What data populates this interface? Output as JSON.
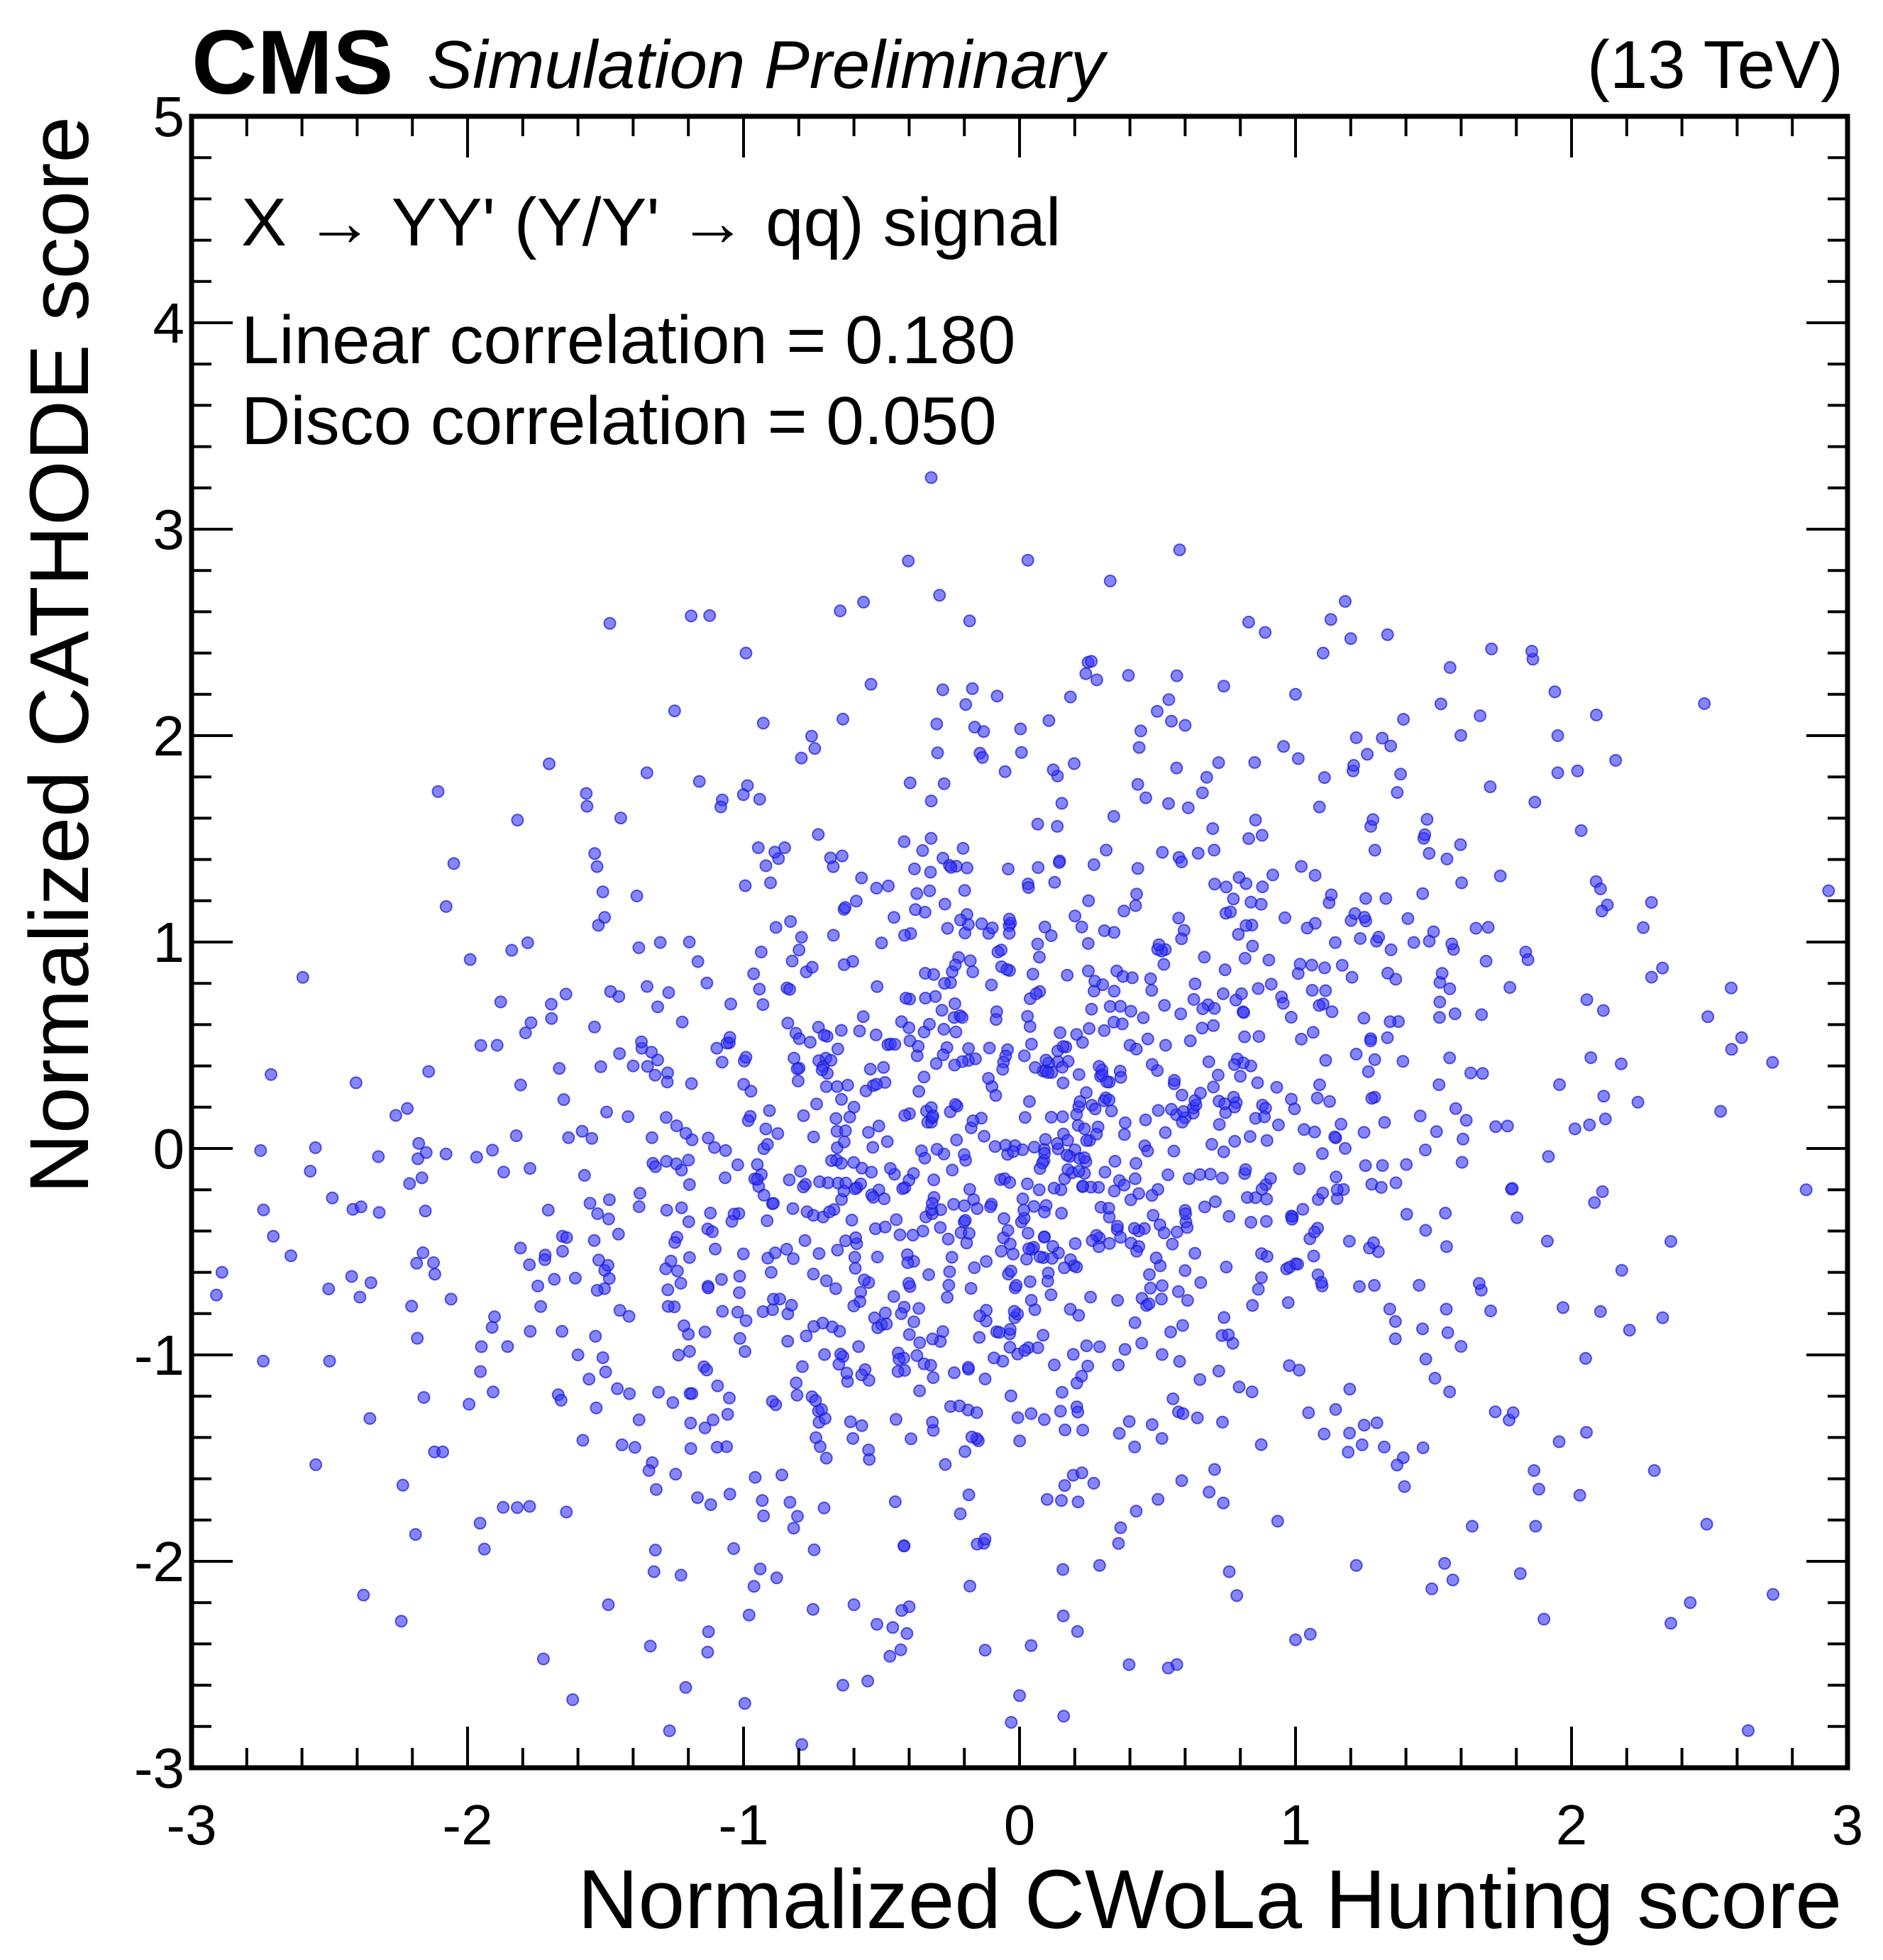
{
  "colors": {
    "points": "#3333ff",
    "points_stroke": "#1a1acc",
    "axes": "#000000",
    "background": "#ffffff"
  },
  "header": {
    "experiment": "CMS",
    "status": "Simulation Preliminary",
    "energy": "(13 TeV)"
  },
  "annotations": {
    "process": "X → YY' (Y/Y' → qq) signal",
    "linear_corr": "Linear correlation = 0.180",
    "disco_corr": "Disco correlation = 0.050"
  },
  "chart_data": {
    "type": "scatter",
    "title": "",
    "xlabel": "Normalized CWoLa Hunting score",
    "ylabel": "Normalized CATHODE score",
    "xlim": [
      -3,
      3
    ],
    "ylim": [
      -3,
      5
    ],
    "xticks": [
      -3,
      -2,
      -1,
      0,
      1,
      2,
      3
    ],
    "yticks": [
      -3,
      -2,
      -1,
      0,
      1,
      2,
      3,
      4,
      5
    ],
    "xtick_labels": [
      "-3",
      "-2",
      "-1",
      "0",
      "1",
      "2",
      "3"
    ],
    "ytick_labels": [
      "-3",
      "-2",
      "-1",
      "0",
      "1",
      "2",
      "3",
      "4",
      "5"
    ],
    "grid": false,
    "legend": "none",
    "series": [
      {
        "name": "X → YY' (Y/Y' → qq) signal",
        "n_points_approx": 1500,
        "linear_correlation": 0.18,
        "disco_correlation": 0.05,
        "explicit_points": [
          [
            -0.32,
            3.25
          ],
          [
            0.03,
            2.85
          ],
          [
            0.58,
            2.9
          ],
          [
            -0.29,
            2.68
          ],
          [
            -1.19,
            2.58
          ],
          [
            1.18,
            2.65
          ],
          [
            1.2,
            2.47
          ],
          [
            0.83,
            2.55
          ],
          [
            0.89,
            2.5
          ],
          [
            1.1,
            2.4
          ],
          [
            1.71,
            2.42
          ],
          [
            1.86,
            2.37
          ],
          [
            1.56,
            2.33
          ],
          [
            0.57,
            2.29
          ],
          [
            0.74,
            2.24
          ],
          [
            0.24,
            2.3
          ],
          [
            0.28,
            2.27
          ],
          [
            -1.35,
            1.82
          ],
          [
            -1.57,
            1.72
          ],
          [
            -2.05,
            1.38
          ],
          [
            -1.25,
            2.12
          ],
          [
            -0.64,
            2.08
          ],
          [
            -0.13,
            2.02
          ],
          [
            0.55,
            2.07
          ],
          [
            0.6,
            2.05
          ],
          [
            1.0,
            2.2
          ],
          [
            1.22,
            1.99
          ],
          [
            1.26,
            1.91
          ],
          [
            1.95,
            2.0
          ],
          [
            2.09,
            2.1
          ],
          [
            1.95,
            1.82
          ],
          [
            2.16,
            1.88
          ],
          [
            2.58,
            0.48
          ],
          [
            2.85,
            -0.2
          ],
          [
            2.54,
            0.18
          ],
          [
            2.73,
            -2.16
          ],
          [
            2.64,
            -2.82
          ],
          [
            2.36,
            -2.3
          ],
          [
            2.49,
            -1.82
          ],
          [
            2.43,
            -2.2
          ],
          [
            2.3,
            -1.56
          ],
          [
            2.21,
            -0.88
          ],
          [
            2.33,
            -0.82
          ],
          [
            2.36,
            -0.45
          ],
          [
            2.18,
            0.41
          ],
          [
            2.26,
            1.07
          ],
          [
            2.29,
            0.83
          ],
          [
            2.13,
            1.18
          ],
          [
            2.11,
            1.15
          ],
          [
            2.07,
            0.44
          ],
          [
            -2.89,
            -0.6
          ],
          [
            -2.91,
            -0.71
          ],
          [
            -2.75,
            -0.01
          ],
          [
            -2.74,
            -1.03
          ],
          [
            -2.64,
            -0.52
          ],
          [
            -2.57,
            -0.11
          ],
          [
            -2.5,
            -1.03
          ],
          [
            -2.49,
            -0.24
          ],
          [
            -2.42,
            -0.62
          ],
          [
            -2.39,
            -0.72
          ],
          [
            -2.35,
            -0.65
          ],
          [
            -2.32,
            -0.31
          ],
          [
            -2.26,
            0.16
          ],
          [
            -2.24,
            -2.29
          ],
          [
            -2.21,
            -0.17
          ],
          [
            -2.18,
            -0.05
          ],
          [
            -2.15,
            -0.02
          ],
          [
            -2.12,
            -1.47
          ],
          [
            -2.09,
            -1.47
          ],
          [
            -2.06,
            -0.73
          ],
          [
            -1.95,
            -0.96
          ],
          [
            -1.88,
            0.71
          ],
          [
            -1.84,
            0.96
          ],
          [
            -1.82,
            -1.74
          ],
          [
            -1.79,
            0.56
          ],
          [
            -1.13,
            -2.44
          ],
          [
            -0.98,
            -2.26
          ],
          [
            -0.88,
            -2.08
          ],
          [
            -0.64,
            -2.6
          ],
          [
            -0.55,
            -2.58
          ],
          [
            -0.47,
            -2.46
          ],
          [
            -0.03,
            -2.78
          ],
          [
            0.0,
            -2.65
          ],
          [
            0.16,
            -2.75
          ],
          [
            0.21,
            -2.34
          ],
          [
            0.57,
            -2.5
          ],
          [
            0.76,
            -2.05
          ],
          [
            1.0,
            -2.38
          ],
          [
            1.22,
            -2.02
          ],
          [
            1.54,
            -2.01
          ],
          [
            1.57,
            -2.09
          ],
          [
            1.64,
            -1.83
          ],
          [
            1.87,
            -1.83
          ],
          [
            1.9,
            -2.28
          ],
          [
            2.03,
            -1.68
          ],
          [
            -1.49,
            -2.21
          ],
          [
            -0.6,
            -2.21
          ],
          [
            -0.4,
            -2.22
          ],
          [
            -0.18,
            -2.12
          ],
          [
            0.29,
            -2.02
          ],
          [
            0.02,
            0.15
          ],
          [
            -0.1,
            0.3
          ],
          [
            0.15,
            -0.2
          ],
          [
            0.4,
            0.5
          ],
          [
            -0.35,
            -0.4
          ],
          [
            0.6,
            -0.3
          ],
          [
            -0.6,
            0.2
          ],
          [
            0.8,
            0.35
          ],
          [
            -0.9,
            -0.6
          ],
          [
            1.1,
            0.7
          ],
          [
            -1.2,
            -0.9
          ],
          [
            1.3,
            -0.5
          ],
          [
            -1.4,
            0.4
          ],
          [
            0.25,
            1.2
          ],
          [
            -0.25,
            -1.25
          ],
          [
            0.7,
            1.55
          ],
          [
            -0.7,
            -1.5
          ],
          [
            1.5,
            1.05
          ],
          [
            -1.6,
            -1.0
          ],
          [
            0.1,
            -1.7
          ]
        ]
      }
    ]
  }
}
